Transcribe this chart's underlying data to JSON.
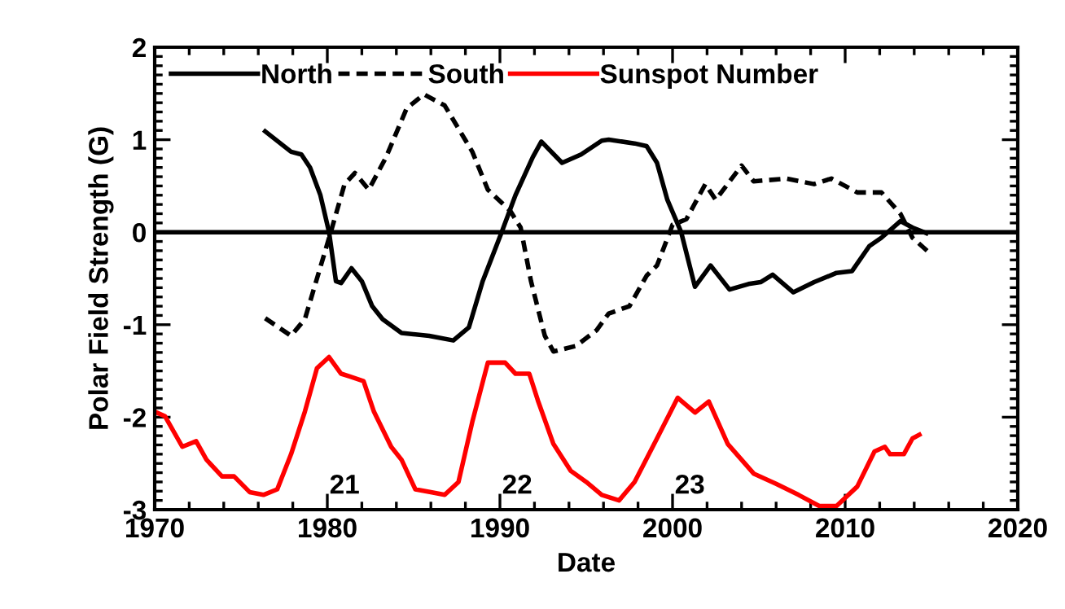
{
  "chart_data": {
    "type": "line",
    "xlabel": "Date",
    "ylabel": "Polar Field Strength (G)",
    "xlim": [
      1970,
      2020
    ],
    "xticks": [
      1970,
      1980,
      1990,
      2000,
      2010,
      2020
    ],
    "ylim": [
      -3,
      2
    ],
    "yticks": [
      -3,
      -2,
      -1,
      0,
      1,
      2
    ],
    "legend": "top left",
    "ref_lines": [
      {
        "axis": "y",
        "value": 0,
        "color": "#000000"
      }
    ],
    "annotations": [
      "21",
      "22",
      "23"
    ],
    "series": [
      {
        "name": "North",
        "color": "#000000",
        "line_style": "solid",
        "x": [
          1976.4,
          1977.9,
          1978.5,
          1979.0,
          1979.6,
          1980.1,
          1980.5,
          1980.8,
          1981.4,
          1982.0,
          1982.6,
          1983.2,
          1984.3,
          1985.9,
          1987.3,
          1988.2,
          1989.0,
          1990.1,
          1990.9,
          1991.9,
          1992.4,
          1993.6,
          1994.7,
          1995.9,
          1996.3,
          1997.8,
          1998.5,
          1999.1,
          1999.7,
          2000.5,
          2001.3,
          2002.2,
          2003.3,
          2004.4,
          2005.1,
          2005.8,
          2007.0,
          2008.2,
          2009.5,
          2010.4,
          2011.4,
          2012.1,
          2013.2,
          2013.9,
          2014.7
        ],
        "values": [
          1.09,
          0.87,
          0.84,
          0.7,
          0.4,
          0,
          -0.53,
          -0.55,
          -0.39,
          -0.53,
          -0.8,
          -0.94,
          -1.09,
          -1.12,
          -1.17,
          -1.03,
          -0.53,
          0,
          0.4,
          0.81,
          0.98,
          0.75,
          0.84,
          0.99,
          1.0,
          0.96,
          0.93,
          0.75,
          0.35,
          0,
          -0.59,
          -0.36,
          -0.62,
          -0.56,
          -0.54,
          -0.46,
          -0.65,
          -0.54,
          -0.44,
          -0.42,
          -0.15,
          -0.06,
          0.12,
          0.05,
          -0.01
        ]
      },
      {
        "name": "South",
        "color": "#000000",
        "line_style": "dashed",
        "x": [
          1976.4,
          1977.9,
          1978.7,
          1980.2,
          1981.0,
          1981.6,
          1982.4,
          1983.4,
          1984.6,
          1985.6,
          1986.8,
          1988.4,
          1989.3,
          1990.6,
          1991.2,
          1991.8,
          1992.6,
          1993.1,
          1994.4,
          1995.6,
          1996.3,
          1997.5,
          1998.5,
          1999.1,
          2000.0,
          2000.8,
          2001.9,
          2002.5,
          2004.0,
          2004.7,
          2006.6,
          2008.2,
          2009.2,
          2010.7,
          2012.1,
          2013.2,
          2013.9,
          2014.8
        ],
        "values": [
          -0.93,
          -1.12,
          -0.94,
          0,
          0.52,
          0.64,
          0.46,
          0.81,
          1.34,
          1.49,
          1.37,
          0.87,
          0.46,
          0.23,
          0.05,
          -0.53,
          -1.12,
          -1.29,
          -1.23,
          -1.06,
          -0.88,
          -0.8,
          -0.47,
          -0.36,
          0.08,
          0.14,
          0.52,
          0.35,
          0.72,
          0.55,
          0.58,
          0.52,
          0.58,
          0.43,
          0.43,
          0.2,
          -0.06,
          -0.21
        ]
      },
      {
        "name": "Sunspot Number",
        "color": "#ff0000",
        "line_style": "solid",
        "x": [
          1970.0,
          1970.6,
          1971.6,
          1972.4,
          1973.0,
          1973.9,
          1974.6,
          1975.5,
          1976.3,
          1977.1,
          1977.9,
          1978.7,
          1979.4,
          1980.1,
          1980.8,
          1981.3,
          1982.1,
          1982.7,
          1983.7,
          1984.3,
          1985.1,
          1986.0,
          1986.8,
          1987.6,
          1988.4,
          1989.3,
          1990.3,
          1990.9,
          1991.7,
          1992.2,
          1993.1,
          1994.1,
          1995.0,
          1995.9,
          1996.9,
          1997.8,
          1999.1,
          2000.3,
          2001.3,
          2002.1,
          2003.2,
          2004.7,
          2006.0,
          2007.3,
          2008.5,
          2009.5,
          2010.7,
          2011.7,
          2012.3,
          2012.6,
          2013.4,
          2013.9,
          2014.3
        ],
        "values": [
          -1.94,
          -1.99,
          -2.32,
          -2.26,
          -2.46,
          -2.64,
          -2.64,
          -2.81,
          -2.84,
          -2.78,
          -2.4,
          -1.94,
          -1.47,
          -1.35,
          -1.53,
          -1.56,
          -1.61,
          -1.94,
          -2.32,
          -2.46,
          -2.78,
          -2.81,
          -2.84,
          -2.7,
          -2.05,
          -1.41,
          -1.41,
          -1.53,
          -1.53,
          -1.82,
          -2.29,
          -2.58,
          -2.7,
          -2.84,
          -2.9,
          -2.7,
          -2.23,
          -1.79,
          -1.95,
          -1.83,
          -2.29,
          -2.61,
          -2.72,
          -2.84,
          -2.96,
          -2.96,
          -2.75,
          -2.37,
          -2.32,
          -2.4,
          -2.4,
          -2.23,
          -2.19
        ]
      }
    ]
  }
}
